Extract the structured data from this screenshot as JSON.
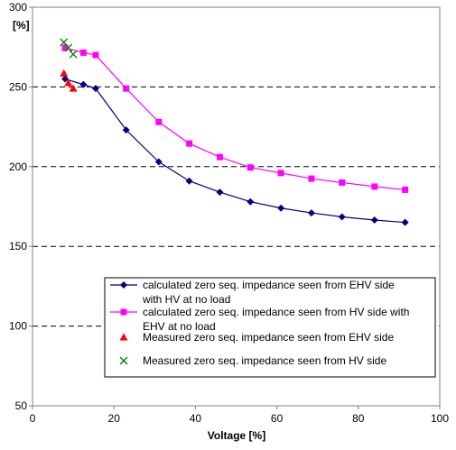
{
  "chart_data": {
    "type": "line",
    "title": "",
    "xlabel": "Voltage [%]",
    "ylabel": "[%]",
    "xlim": [
      0,
      100
    ],
    "ylim": [
      50,
      300
    ],
    "x_ticks": [
      0,
      20,
      40,
      60,
      80,
      100
    ],
    "y_ticks": [
      50,
      100,
      150,
      200,
      250,
      300
    ],
    "grid": "horizontal dashed",
    "legend_position": "lower-right inside plot",
    "series": [
      {
        "name": "calculated zero seq. impedance seen from EHV side with HV at no load",
        "color": "#000080",
        "marker": "diamond",
        "line": true,
        "x": [
          8,
          12.5,
          15.5,
          23,
          31,
          38.5,
          46,
          53.5,
          61,
          68.5,
          76,
          84,
          91.5
        ],
        "y": [
          255,
          251.5,
          249,
          223,
          203,
          191,
          184,
          178,
          174,
          171,
          168.5,
          166.5,
          165
        ]
      },
      {
        "name": "calculated zero seq. impedance seen from HV side with EHV at no load",
        "color": "#ff00ff",
        "marker": "square",
        "line": true,
        "x": [
          8,
          12.5,
          15.5,
          23,
          31,
          38.5,
          46,
          53.5,
          61,
          68.5,
          76,
          84,
          91.5
        ],
        "y": [
          274.5,
          271.5,
          270,
          249,
          228,
          214.5,
          206,
          199.5,
          196,
          192.5,
          190,
          187.5,
          185.5
        ]
      },
      {
        "name": "Measured zero seq. impedance seen from EHV side",
        "color": "#ff0000",
        "marker": "triangle",
        "line": false,
        "x": [
          7.7,
          8.8,
          10
        ],
        "y": [
          258.5,
          252.5,
          249
        ]
      },
      {
        "name": "Measured zero seq. impedance seen from HV side",
        "color": "#008000",
        "marker": "x",
        "line": false,
        "x": [
          7.7,
          8.8,
          10
        ],
        "y": [
          278,
          274.5,
          270.5
        ]
      }
    ]
  }
}
